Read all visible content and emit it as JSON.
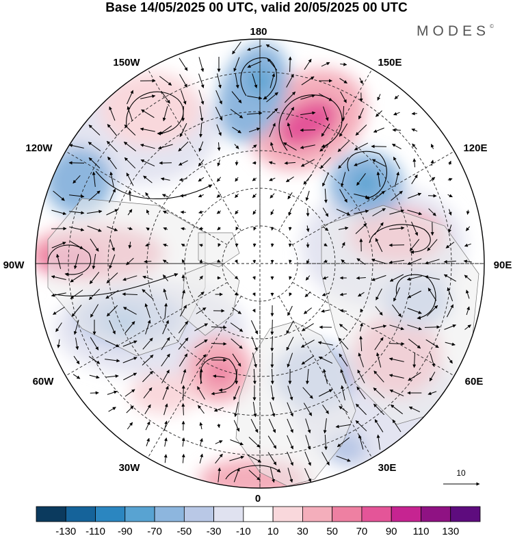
{
  "title": "Base 14/05/2025 00 UTC, valid 20/05/2025 00 UTC",
  "brand": "MODES",
  "brand_mark": "©",
  "longitude_labels": {
    "top": "180",
    "bottom": "0",
    "left": "90W",
    "right": "90E",
    "upper_left_1": "150W",
    "upper_left_2": "120W",
    "upper_right_1": "150E",
    "upper_right_2": "120E",
    "lower_left_1": "60W",
    "lower_left_2": "30W",
    "lower_right_1": "60E",
    "lower_right_2": "30E"
  },
  "reference_vector": {
    "label": "10"
  },
  "colorbar": {
    "colors": [
      "#0b3a5e",
      "#15639a",
      "#2b86c0",
      "#58a3d2",
      "#8db6de",
      "#b9c8e6",
      "#e0e2f0",
      "#ffffff",
      "#f9d8dc",
      "#f4aebb",
      "#ee80a2",
      "#e45598",
      "#c62491",
      "#8f1283",
      "#5e0c7e"
    ],
    "tick_labels": [
      "-130",
      "-110",
      "-90",
      "-70",
      "-50",
      "-30",
      "-10",
      "10",
      "30",
      "50",
      "70",
      "90",
      "110",
      "130"
    ]
  },
  "colors": {
    "land": "#ececec",
    "ocean": "#ffffff",
    "grid": "#222222"
  }
}
